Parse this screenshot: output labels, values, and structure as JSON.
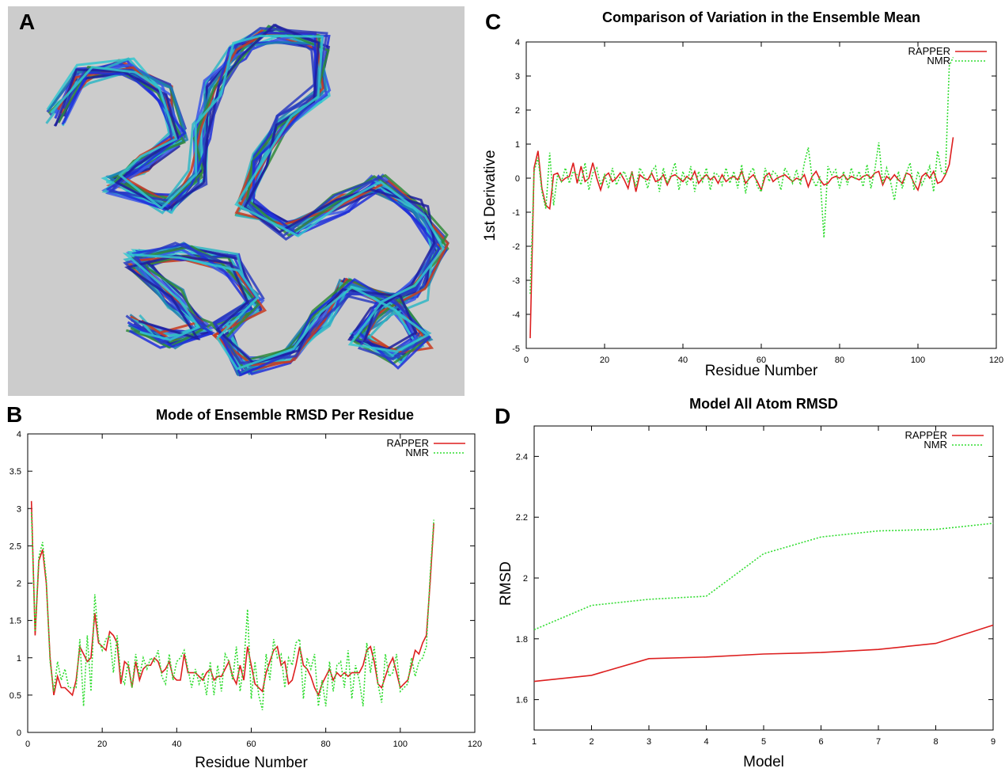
{
  "panels": {
    "a": {
      "letter": "A"
    },
    "b": {
      "letter": "B",
      "title": "Mode of Ensemble RMSD Per Residue",
      "xlabel": "Residue Number",
      "ylabel": ""
    },
    "c": {
      "letter": "C",
      "title": "Comparison of Variation in the Ensemble Mean",
      "xlabel": "Residue Number",
      "ylabel": "1st Derivative"
    },
    "d": {
      "letter": "D",
      "title": "Model All Atom RMSD",
      "xlabel": "Model",
      "ylabel": "RMSD"
    }
  },
  "colors": {
    "rapper": "#dd1f1f",
    "nmr": "#33dd33",
    "mol_bg": "#cccccc"
  },
  "chart_data": [
    {
      "panel": "B",
      "type": "line",
      "title": "Mode of Ensemble RMSD Per Residue",
      "xlabel": "Residue Number",
      "ylabel": "",
      "xlim": [
        0,
        120
      ],
      "ylim": [
        0,
        4
      ],
      "xticks": [
        0,
        20,
        40,
        60,
        80,
        100,
        120
      ],
      "yticks": [
        0,
        0.5,
        1,
        1.5,
        2,
        2.5,
        3,
        3.5,
        4
      ],
      "legend_position": "top-right",
      "grid": false,
      "series": [
        {
          "name": "RAPPER",
          "color": "#dd1f1f",
          "style": "solid",
          "x": [
            1,
            2,
            3,
            4,
            5,
            6,
            7,
            8,
            9,
            10,
            11,
            12,
            13,
            14,
            15,
            16,
            17,
            18,
            19,
            20,
            21,
            22,
            23,
            24,
            25,
            26,
            27,
            28,
            29,
            30,
            31,
            32,
            33,
            34,
            35,
            36,
            37,
            38,
            39,
            40,
            41,
            42,
            43,
            44,
            45,
            46,
            47,
            48,
            49,
            50,
            51,
            52,
            53,
            54,
            55,
            56,
            57,
            58,
            59,
            60,
            61,
            62,
            63,
            64,
            65,
            66,
            67,
            68,
            69,
            70,
            71,
            72,
            73,
            74,
            75,
            76,
            77,
            78,
            79,
            80,
            81,
            82,
            83,
            84,
            85,
            86,
            87,
            88,
            89,
            90,
            91,
            92,
            93,
            94,
            95,
            96,
            97,
            98,
            99,
            100,
            101,
            102,
            103,
            104,
            105,
            106,
            107,
            108,
            109
          ],
          "y": [
            3.1,
            1.3,
            2.3,
            2.45,
            2.0,
            1.0,
            0.5,
            0.75,
            0.6,
            0.6,
            0.55,
            0.5,
            0.7,
            1.15,
            1.05,
            0.95,
            1.0,
            1.6,
            1.2,
            1.15,
            1.1,
            1.35,
            1.3,
            1.2,
            0.65,
            0.95,
            0.9,
            0.6,
            0.95,
            0.7,
            0.85,
            0.9,
            0.9,
            1.0,
            0.95,
            0.8,
            0.85,
            0.95,
            0.75,
            0.7,
            0.7,
            1.05,
            0.8,
            0.8,
            0.8,
            0.75,
            0.7,
            0.8,
            0.85,
            0.7,
            0.75,
            0.75,
            0.85,
            0.95,
            0.75,
            0.65,
            0.9,
            0.7,
            1.15,
            0.9,
            0.65,
            0.6,
            0.55,
            0.8,
            0.95,
            1.1,
            1.15,
            0.9,
            0.95,
            0.65,
            0.7,
            0.9,
            1.15,
            0.9,
            0.85,
            0.75,
            0.6,
            0.5,
            0.65,
            0.75,
            0.85,
            0.7,
            0.8,
            0.75,
            0.8,
            0.75,
            0.8,
            0.8,
            0.8,
            0.9,
            1.1,
            1.15,
            0.95,
            0.65,
            0.6,
            0.75,
            0.9,
            1.0,
            0.8,
            0.6,
            0.65,
            0.7,
            0.9,
            1.1,
            1.05,
            1.2,
            1.3,
            2.0,
            2.8
          ]
        },
        {
          "name": "NMR",
          "color": "#33dd33",
          "style": "dotted",
          "x": [
            1,
            2,
            3,
            4,
            5,
            6,
            7,
            8,
            9,
            10,
            11,
            12,
            13,
            14,
            15,
            16,
            17,
            18,
            19,
            20,
            21,
            22,
            23,
            24,
            25,
            26,
            27,
            28,
            29,
            30,
            31,
            32,
            33,
            34,
            35,
            36,
            37,
            38,
            39,
            40,
            41,
            42,
            43,
            44,
            45,
            46,
            47,
            48,
            49,
            50,
            51,
            52,
            53,
            54,
            55,
            56,
            57,
            58,
            59,
            60,
            61,
            62,
            63,
            64,
            65,
            66,
            67,
            68,
            69,
            70,
            71,
            72,
            73,
            74,
            75,
            76,
            77,
            78,
            79,
            80,
            81,
            82,
            83,
            84,
            85,
            86,
            87,
            88,
            89,
            90,
            91,
            92,
            93,
            94,
            95,
            96,
            97,
            98,
            99,
            100,
            101,
            102,
            103,
            104,
            105,
            106,
            107,
            108,
            109
          ],
          "y": [
            2.95,
            1.35,
            2.35,
            2.55,
            2.05,
            0.95,
            0.55,
            0.95,
            0.7,
            0.85,
            0.6,
            0.6,
            0.6,
            1.25,
            0.35,
            1.3,
            0.55,
            1.85,
            1.25,
            1.1,
            1.25,
            1.3,
            0.8,
            1.3,
            0.75,
            0.65,
            0.95,
            0.6,
            1.05,
            0.75,
            1.0,
            0.85,
            1.0,
            0.95,
            1.1,
            0.75,
            0.65,
            1.05,
            0.7,
            0.95,
            1.0,
            1.1,
            0.85,
            0.6,
            0.85,
            0.65,
            0.8,
            0.5,
            0.95,
            0.5,
            0.9,
            0.55,
            1.05,
            0.95,
            0.7,
            1.15,
            0.55,
            0.9,
            1.65,
            0.45,
            0.95,
            0.5,
            0.3,
            1.05,
            0.7,
            1.25,
            1.0,
            1.05,
            0.6,
            1.0,
            0.9,
            1.2,
            1.25,
            0.45,
            1.0,
            0.85,
            1.05,
            0.35,
            0.7,
            0.35,
            0.95,
            0.55,
            0.9,
            0.95,
            0.6,
            1.1,
            0.45,
            0.9,
            0.7,
            0.35,
            1.2,
            0.8,
            1.15,
            0.65,
            0.4,
            1.05,
            0.75,
            0.8,
            1.05,
            0.55,
            0.6,
            0.65,
            1.0,
            0.75,
            0.95,
            1.0,
            1.15,
            2.1,
            2.85
          ]
        }
      ]
    },
    {
      "panel": "C",
      "type": "line",
      "title": "Comparison of Variation in the Ensemble Mean",
      "xlabel": "Residue Number",
      "ylabel": "1st Derivative",
      "xlim": [
        0,
        120
      ],
      "ylim": [
        -5,
        4
      ],
      "xticks": [
        0,
        20,
        40,
        60,
        80,
        100,
        120
      ],
      "yticks": [
        -5,
        -4,
        -3,
        -2,
        -1,
        0,
        1,
        2,
        3,
        4
      ],
      "legend_position": "top-right",
      "grid": false,
      "series": [
        {
          "name": "RAPPER",
          "color": "#dd1f1f",
          "style": "solid",
          "x": [
            1,
            2,
            3,
            4,
            5,
            6,
            7,
            8,
            9,
            10,
            11,
            12,
            13,
            14,
            15,
            16,
            17,
            18,
            19,
            20,
            21,
            22,
            23,
            24,
            25,
            26,
            27,
            28,
            29,
            30,
            31,
            32,
            33,
            34,
            35,
            36,
            37,
            38,
            39,
            40,
            41,
            42,
            43,
            44,
            45,
            46,
            47,
            48,
            49,
            50,
            51,
            52,
            53,
            54,
            55,
            56,
            57,
            58,
            59,
            60,
            61,
            62,
            63,
            64,
            65,
            66,
            67,
            68,
            69,
            70,
            71,
            72,
            73,
            74,
            75,
            76,
            77,
            78,
            79,
            80,
            81,
            82,
            83,
            84,
            85,
            86,
            87,
            88,
            89,
            90,
            91,
            92,
            93,
            94,
            95,
            96,
            97,
            98,
            99,
            100,
            101,
            102,
            103,
            104,
            105,
            106,
            107,
            108,
            109
          ],
          "y": [
            -4.7,
            0.3,
            0.8,
            -0.3,
            -0.8,
            -0.9,
            0.1,
            0.15,
            -0.1,
            0.0,
            0.05,
            0.45,
            -0.15,
            0.35,
            -0.1,
            0.0,
            0.45,
            0.0,
            -0.35,
            0.05,
            0.15,
            -0.1,
            0.0,
            0.15,
            -0.05,
            -0.3,
            0.2,
            -0.4,
            0.1,
            0.0,
            -0.05,
            0.15,
            -0.1,
            -0.05,
            0.1,
            -0.2,
            0.05,
            0.1,
            0.0,
            -0.1,
            0.05,
            -0.05,
            0.2,
            -0.15,
            0.0,
            0.1,
            -0.05,
            0.05,
            -0.15,
            0.1,
            -0.1,
            0.0,
            0.05,
            -0.05,
            0.2,
            -0.15,
            0.0,
            0.1,
            -0.1,
            -0.35,
            0.05,
            0.15,
            -0.1,
            0.0,
            0.05,
            0.1,
            0.0,
            -0.1,
            0.0,
            -0.05,
            0.1,
            -0.25,
            0.05,
            0.2,
            -0.05,
            -0.2,
            -0.15,
            0.0,
            0.05,
            0.0,
            0.1,
            -0.05,
            0.05,
            0.0,
            -0.05,
            0.05,
            0.1,
            0.0,
            0.15,
            0.2,
            -0.2,
            0.05,
            -0.05,
            0.1,
            -0.05,
            -0.15,
            0.15,
            0.1,
            -0.15,
            -0.35,
            0.05,
            0.15,
            0.0,
            0.2,
            -0.15,
            -0.1,
            0.1,
            0.4,
            1.2
          ]
        },
        {
          "name": "NMR",
          "color": "#33dd33",
          "style": "dotted",
          "x": [
            1,
            2,
            3,
            4,
            5,
            6,
            7,
            8,
            9,
            10,
            11,
            12,
            13,
            14,
            15,
            16,
            17,
            18,
            19,
            20,
            21,
            22,
            23,
            24,
            25,
            26,
            27,
            28,
            29,
            30,
            31,
            32,
            33,
            34,
            35,
            36,
            37,
            38,
            39,
            40,
            41,
            42,
            43,
            44,
            45,
            46,
            47,
            48,
            49,
            50,
            51,
            52,
            53,
            54,
            55,
            56,
            57,
            58,
            59,
            60,
            61,
            62,
            63,
            64,
            65,
            66,
            67,
            68,
            69,
            70,
            71,
            72,
            73,
            74,
            75,
            76,
            77,
            78,
            79,
            80,
            81,
            82,
            83,
            84,
            85,
            86,
            87,
            88,
            89,
            90,
            91,
            92,
            93,
            94,
            95,
            96,
            97,
            98,
            99,
            100,
            101,
            102,
            103,
            104,
            105,
            106,
            107,
            108,
            109
          ],
          "y": [
            -3.4,
            0.2,
            0.6,
            -0.4,
            -0.9,
            0.75,
            -0.8,
            0.1,
            -0.1,
            0.3,
            -0.15,
            0.2,
            0.1,
            -0.2,
            0.45,
            -0.35,
            0.15,
            0.3,
            -0.2,
            0.1,
            -0.3,
            0.3,
            -0.2,
            0.05,
            0.2,
            -0.1,
            0.15,
            -0.25,
            0.3,
            0.1,
            -0.3,
            0.2,
            0.35,
            -0.4,
            0.3,
            -0.15,
            0.1,
            0.45,
            -0.35,
            0.2,
            -0.2,
            0.35,
            -0.4,
            0.2,
            -0.1,
            0.3,
            -0.35,
            0.15,
            0.1,
            -0.2,
            0.3,
            -0.15,
            0.2,
            -0.3,
            0.4,
            -0.45,
            0.15,
            0.3,
            -0.25,
            -0.4,
            0.3,
            -0.1,
            0.2,
            0.1,
            -0.35,
            0.3,
            0.1,
            -0.15,
            0.25,
            -0.2,
            0.45,
            0.9,
            0.0,
            -0.25,
            0.05,
            -1.75,
            0.35,
            0.1,
            0.25,
            -0.3,
            0.2,
            -0.2,
            0.3,
            -0.05,
            0.2,
            -0.25,
            0.4,
            -0.3,
            0.25,
            1.05,
            -0.15,
            0.3,
            -0.1,
            -0.65,
            0.2,
            -0.3,
            0.15,
            0.45,
            -0.35,
            0.2,
            -0.2,
            0.05,
            0.35,
            -0.4,
            0.8,
            0.2,
            0.1,
            3.3,
            3.55
          ]
        }
      ]
    },
    {
      "panel": "D",
      "type": "line",
      "title": "Model All Atom RMSD",
      "xlabel": "Model",
      "ylabel": "RMSD",
      "xlim": [
        1,
        9
      ],
      "ylim": [
        1.5,
        2.5
      ],
      "xticks": [
        1,
        2,
        3,
        4,
        5,
        6,
        7,
        8,
        9
      ],
      "yticks": [
        1.6,
        1.8,
        2,
        2.2,
        2.4
      ],
      "legend_position": "top-right",
      "grid": false,
      "series": [
        {
          "name": "RAPPER",
          "color": "#dd1f1f",
          "style": "solid",
          "x": [
            1,
            2,
            3,
            4,
            5,
            6,
            7,
            8,
            9
          ],
          "y": [
            1.66,
            1.68,
            1.735,
            1.74,
            1.75,
            1.755,
            1.765,
            1.785,
            1.845
          ]
        },
        {
          "name": "NMR",
          "color": "#33dd33",
          "style": "dotted",
          "x": [
            1,
            2,
            3,
            4,
            5,
            6,
            7,
            8,
            9
          ],
          "y": [
            1.83,
            1.91,
            1.93,
            1.94,
            2.08,
            2.135,
            2.155,
            2.16,
            2.18
          ]
        }
      ]
    }
  ]
}
